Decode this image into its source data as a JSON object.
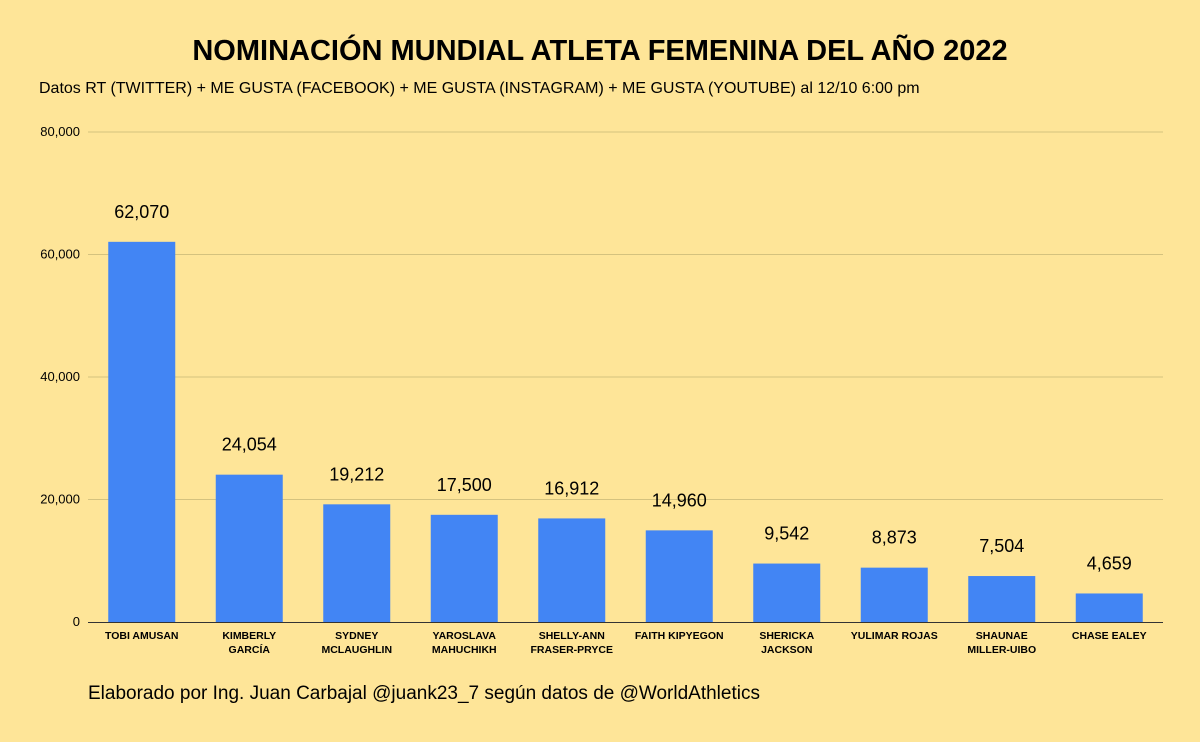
{
  "chart_data": {
    "type": "bar",
    "title": "NOMINACIÓN MUNDIAL ATLETA FEMENINA DEL AÑO 2022",
    "subtitle": "Datos RT (TWITTER) + ME GUSTA (FACEBOOK) + ME GUSTA (INSTAGRAM) + ME GUSTA (YOUTUBE) al 12/10 6:00 pm",
    "categories": [
      [
        "TOBI AMUSAN"
      ],
      [
        "KIMBERLY",
        "GARCÍA"
      ],
      [
        "SYDNEY",
        "MCLAUGHLIN"
      ],
      [
        "YAROSLAVA",
        "MAHUCHIKH"
      ],
      [
        "SHELLY-ANN",
        "FRASER-PRYCE"
      ],
      [
        "FAITH KIPYEGON"
      ],
      [
        "SHERICKA",
        "JACKSON"
      ],
      [
        "YULIMAR ROJAS"
      ],
      [
        "SHAUNAE",
        "MILLER-UIBO"
      ],
      [
        "CHASE EALEY"
      ]
    ],
    "values": [
      62070,
      24054,
      19212,
      17500,
      16912,
      14960,
      9542,
      8873,
      7504,
      4659
    ],
    "value_labels": [
      "62,070",
      "24,054",
      "19,212",
      "17,500",
      "16,912",
      "14,960",
      "9,542",
      "8,873",
      "7,504",
      "4,659"
    ],
    "ylim": [
      0,
      80000
    ],
    "yticks": [
      0,
      20000,
      40000,
      60000,
      80000
    ],
    "ytick_labels": [
      "0",
      "20,000",
      "40,000",
      "60,000",
      "80,000"
    ],
    "xlabel": "",
    "ylabel": "",
    "grid": true,
    "legend": "none",
    "colors": {
      "bar": "#4285f4",
      "background": "#fee598",
      "grid": "#d4c27e",
      "axis": "#333333"
    }
  },
  "footer": "Elaborado por Ing. Juan Carbajal @juank23_7 según datos de @WorldAthletics"
}
